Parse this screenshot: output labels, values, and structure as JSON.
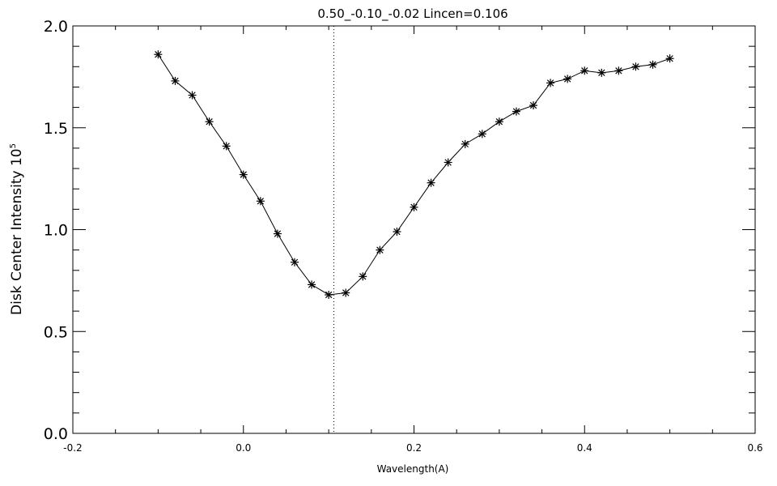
{
  "chart_data": {
    "type": "line",
    "title": "0.50_-0.10_-0.02   Lincen=0.106",
    "xlabel": "Wavelength(A)",
    "ylabel": "Disk Center Intensity 10",
    "ylabel_exponent": "5",
    "xlim": [
      -0.2,
      0.6
    ],
    "ylim": [
      0.0,
      2.0
    ],
    "x_ticks": [
      -0.2,
      0.0,
      0.2,
      0.4,
      0.6
    ],
    "x_tick_labels": [
      "-0.2",
      "0.0",
      "0.2",
      "0.4",
      "0.6"
    ],
    "y_ticks": [
      0.0,
      0.5,
      1.0,
      1.5,
      2.0
    ],
    "y_tick_labels": [
      "0.0",
      "0.5",
      "1.0",
      "1.5",
      "2.0"
    ],
    "grid": false,
    "marker": "asterisk",
    "reference_line": {
      "x": 0.106,
      "style": "dotted"
    },
    "series": [
      {
        "x": [
          -0.1,
          -0.08,
          -0.06,
          -0.04,
          -0.02,
          0.0,
          0.02,
          0.04,
          0.06,
          0.08,
          0.1,
          0.12,
          0.14,
          0.16,
          0.18,
          0.2,
          0.22,
          0.24,
          0.26,
          0.28,
          0.3,
          0.32,
          0.34,
          0.36,
          0.38,
          0.4,
          0.42,
          0.44,
          0.46,
          0.48,
          0.5
        ],
        "values": [
          1.86,
          1.73,
          1.66,
          1.53,
          1.41,
          1.27,
          1.14,
          0.98,
          0.84,
          0.73,
          0.68,
          0.69,
          0.77,
          0.9,
          0.99,
          1.11,
          1.23,
          1.33,
          1.42,
          1.47,
          1.53,
          1.58,
          1.61,
          1.72,
          1.74,
          1.78,
          1.77,
          1.78,
          1.8,
          1.81,
          1.84
        ]
      }
    ]
  }
}
